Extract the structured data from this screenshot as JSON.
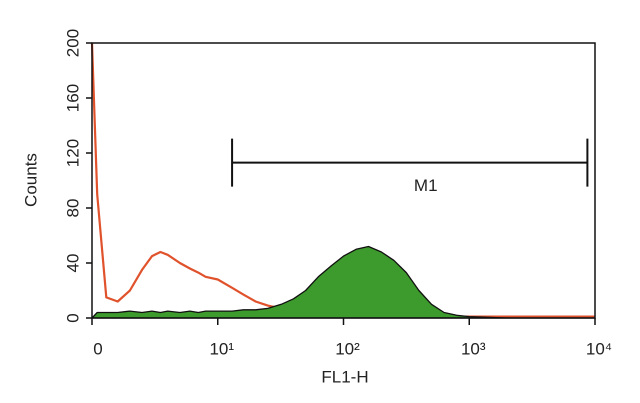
{
  "chart_data": {
    "type": "histogram",
    "xlabel": "FL1-H",
    "ylabel": "Counts",
    "xscale": "log",
    "xlim": [
      1,
      10000
    ],
    "ylim": [
      0,
      200
    ],
    "xticks": [
      {
        "value": 1,
        "label": "0"
      },
      {
        "value": 10,
        "label": "10¹"
      },
      {
        "value": 100,
        "label": "10²"
      },
      {
        "value": 1000,
        "label": "10³"
      },
      {
        "value": 10000,
        "label": "10⁴"
      }
    ],
    "yticks": [
      0,
      40,
      80,
      120,
      160,
      200
    ],
    "x": [
      1,
      1.1,
      1.3,
      1.6,
      2,
      2.5,
      3,
      3.5,
      4,
      5,
      6,
      7,
      8,
      10,
      13,
      16,
      20,
      25,
      32,
      40,
      50,
      63,
      80,
      100,
      126,
      158,
      200,
      251,
      316,
      398,
      501,
      631,
      794,
      1000,
      2000,
      5000,
      10000
    ],
    "series": [
      {
        "color": "#e0522c",
        "fill": false,
        "values": [
          200,
          90,
          15,
          12,
          20,
          35,
          45,
          48,
          46,
          40,
          36,
          33,
          30,
          28,
          22,
          17,
          12,
          9,
          7,
          5,
          4,
          3,
          3,
          2,
          2,
          2,
          2,
          1,
          1,
          1,
          1,
          1,
          1,
          1,
          1,
          1,
          1
        ]
      },
      {
        "color": "#3d9a2c",
        "fill": true,
        "values": [
          0,
          4,
          4,
          4,
          5,
          4,
          5,
          4,
          5,
          4,
          5,
          4,
          5,
          5,
          5,
          6,
          6,
          7,
          10,
          14,
          20,
          30,
          38,
          45,
          50,
          52,
          48,
          42,
          33,
          20,
          10,
          4,
          2,
          1,
          0,
          0,
          0
        ]
      }
    ],
    "gate": {
      "label": "M1",
      "xlim": [
        13,
        8700
      ],
      "y": 113
    }
  }
}
